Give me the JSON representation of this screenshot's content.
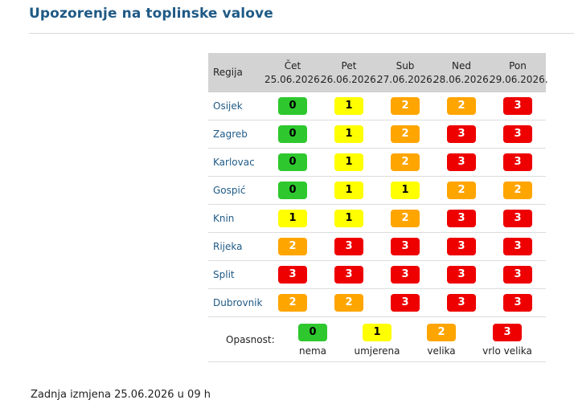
{
  "page": {
    "title": "Upozorenje na toplinske valove",
    "footer": "Zadnja izmjena 25.06.2026 u 09 h"
  },
  "table": {
    "region_header": "Regija",
    "days": [
      {
        "name": "Čet",
        "date": "25.06.2026."
      },
      {
        "name": "Pet",
        "date": "26.06.2026."
      },
      {
        "name": "Sub",
        "date": "27.06.2026."
      },
      {
        "name": "Ned",
        "date": "28.06.2026."
      },
      {
        "name": "Pon",
        "date": "29.06.2026."
      }
    ],
    "rows": [
      {
        "region": "Osijek",
        "levels": [
          0,
          1,
          2,
          2,
          3
        ]
      },
      {
        "region": "Zagreb",
        "levels": [
          0,
          1,
          2,
          3,
          3
        ]
      },
      {
        "region": "Karlovac",
        "levels": [
          0,
          1,
          2,
          3,
          3
        ]
      },
      {
        "region": "Gospić",
        "levels": [
          0,
          1,
          1,
          2,
          2
        ]
      },
      {
        "region": "Knin",
        "levels": [
          1,
          1,
          2,
          3,
          3
        ]
      },
      {
        "region": "Rijeka",
        "levels": [
          2,
          3,
          3,
          3,
          3
        ]
      },
      {
        "region": "Split",
        "levels": [
          3,
          3,
          3,
          3,
          3
        ]
      },
      {
        "region": "Dubrovnik",
        "levels": [
          2,
          2,
          3,
          3,
          3
        ]
      }
    ]
  },
  "legend": {
    "label": "Opasnost:",
    "items": [
      {
        "level": "0",
        "caption": "nema"
      },
      {
        "level": "1",
        "caption": "umjerena"
      },
      {
        "level": "2",
        "caption": "velika"
      },
      {
        "level": "3",
        "caption": "vrlo velika"
      }
    ]
  },
  "colors": {
    "level_0": "#2ec82e",
    "level_1": "#ffff00",
    "level_2": "#ffa500",
    "level_3": "#ee0000",
    "link": "#1f5a86",
    "header_bg": "#d3d3d3"
  }
}
